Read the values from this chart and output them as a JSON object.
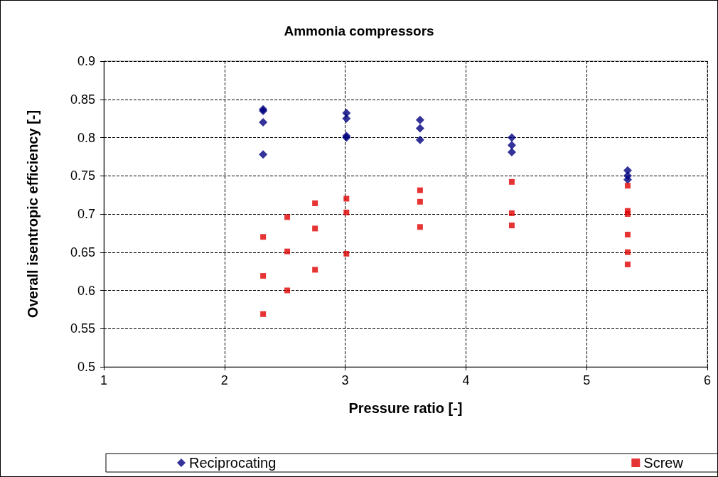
{
  "chart_data": {
    "type": "scatter",
    "title": "Ammonia compressors",
    "xlabel": "Pressure ratio [-]",
    "ylabel": "Overall isentropic efficiency [-]",
    "xlim": [
      1,
      6
    ],
    "xticks": [
      1,
      2,
      3,
      4,
      5,
      6
    ],
    "ylim": [
      0.5,
      0.9
    ],
    "yticks": [
      0.5,
      0.55,
      0.6,
      0.65,
      0.7,
      0.75,
      0.8,
      0.85,
      0.9
    ],
    "grid": true,
    "legend": "bottom",
    "series": [
      {
        "name": "Reciprocating",
        "color": "#000080",
        "marker": "diamond",
        "x": [
          2.32,
          2.32,
          2.32,
          2.32,
          3.01,
          3.01,
          3.01,
          3.01,
          3.62,
          3.62,
          3.62,
          4.38,
          4.38,
          4.38,
          5.34,
          5.34,
          5.34
        ],
        "values": [
          0.837,
          0.835,
          0.82,
          0.778,
          0.832,
          0.825,
          0.802,
          0.8,
          0.823,
          0.812,
          0.797,
          0.8,
          0.79,
          0.781,
          0.757,
          0.75,
          0.745
        ]
      },
      {
        "name": "Screw",
        "color": "#e00000",
        "marker": "square",
        "x": [
          2.32,
          2.32,
          2.32,
          2.52,
          2.52,
          2.52,
          2.75,
          2.75,
          2.75,
          3.01,
          3.01,
          3.01,
          3.62,
          3.62,
          3.62,
          4.38,
          4.38,
          4.38,
          5.34,
          5.34,
          5.34,
          5.34,
          5.34,
          5.34
        ],
        "values": [
          0.67,
          0.619,
          0.569,
          0.696,
          0.651,
          0.6,
          0.714,
          0.681,
          0.627,
          0.72,
          0.702,
          0.648,
          0.731,
          0.716,
          0.683,
          0.742,
          0.701,
          0.685,
          0.737,
          0.704,
          0.7,
          0.673,
          0.65,
          0.634
        ]
      }
    ]
  }
}
